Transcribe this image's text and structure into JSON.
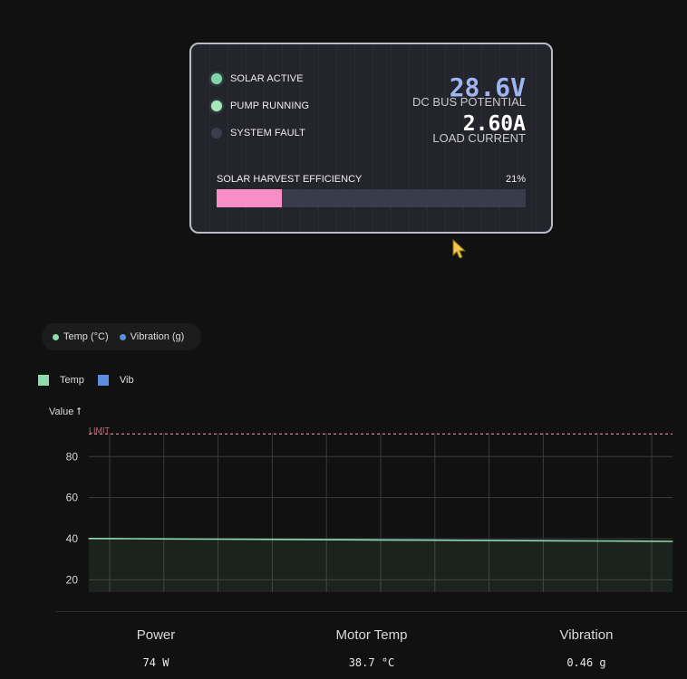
{
  "panel": {
    "indicators": [
      {
        "label": "SOLAR ACTIVE",
        "state": "on",
        "color": "#7fd4a8"
      },
      {
        "label": "PUMP RUNNING",
        "state": "on",
        "color": "#a6e8bb"
      },
      {
        "label": "SYSTEM FAULT",
        "state": "off",
        "color": "#3a3d4c"
      }
    ],
    "bus_voltage": {
      "value": "28.6V",
      "label": "DC BUS POTENTIAL",
      "color": "#9fb4f0"
    },
    "load_current": {
      "value": "2.60A",
      "label": "LOAD CURRENT",
      "color": "#ffffff"
    },
    "efficiency": {
      "label": "SOLAR HARVEST EFFICIENCY",
      "percent_text": "21%",
      "fraction": 0.21,
      "color": "#f78ec5"
    }
  },
  "legend_pill": {
    "items": [
      {
        "label": "Temp (°C)",
        "color": "#8fdcae"
      },
      {
        "label": "Vibration (g)",
        "color": "#5b8ee0"
      }
    ]
  },
  "chart_legend": {
    "items": [
      {
        "label": "Temp",
        "color": "#8fdcae"
      },
      {
        "label": "Vib",
        "color": "#5b8ee0"
      }
    ]
  },
  "chart_data": {
    "type": "area",
    "ylabel": "Value ⭡",
    "yticks": [
      20,
      40,
      60,
      80
    ],
    "ylim": [
      14,
      96
    ],
    "limit": {
      "value": 91,
      "label": "LIMIT"
    },
    "grid": true,
    "series": [
      {
        "name": "Temp",
        "color": "#8fdcae",
        "values": [
          40.1,
          40.0,
          39.9,
          39.8,
          39.7,
          39.6,
          39.5,
          39.4,
          39.3,
          39.2,
          39.1,
          39.0,
          38.9,
          38.8,
          38.7
        ]
      }
    ]
  },
  "stats": [
    {
      "label": "Power",
      "value": "74 W"
    },
    {
      "label": "Motor Temp",
      "value": "38.7 °C"
    },
    {
      "label": "Vibration",
      "value": "0.46 g"
    }
  ]
}
